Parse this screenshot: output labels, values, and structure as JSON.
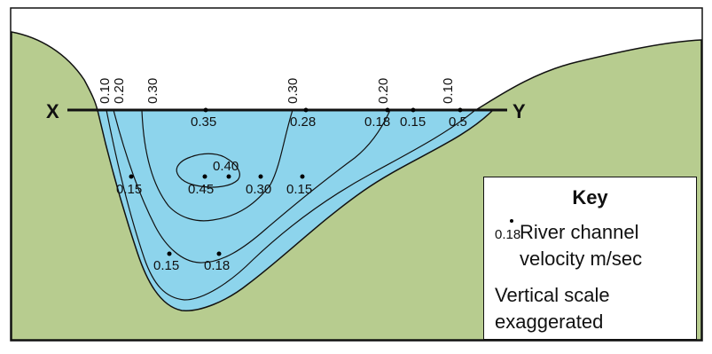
{
  "cross_section": {
    "left_label": "X",
    "right_label": "Y",
    "colors": {
      "land": "#b7cc8f",
      "water": "#8dd4ec",
      "line": "#111111"
    },
    "contour_labels_top": [
      "0.10",
      "0.20",
      "0.30",
      "0.30",
      "0.20",
      "0.10"
    ],
    "velocity_points": [
      {
        "value": "0.35"
      },
      {
        "value": "0.28"
      },
      {
        "value": "0.18"
      },
      {
        "value": "0.15"
      },
      {
        "value": "0.5"
      },
      {
        "value": "0.40"
      },
      {
        "value": "0.45"
      },
      {
        "value": "0.30"
      },
      {
        "value": "0.15"
      },
      {
        "value": "0.15"
      },
      {
        "value": "0.15"
      },
      {
        "value": "0.18"
      }
    ]
  },
  "key": {
    "title": "Key",
    "sample_value": "0.18",
    "description_line1": "River channel",
    "description_line2": "velocity m/sec",
    "note_line1": "Vertical scale",
    "note_line2": "exaggerated"
  }
}
